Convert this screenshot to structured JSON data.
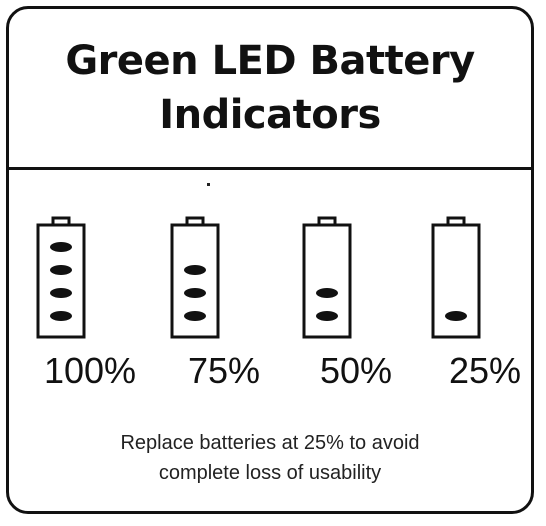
{
  "title_lines": [
    "Green LED Battery",
    "Indicators"
  ],
  "batteries": [
    {
      "label": "100%",
      "leds_lit": 4,
      "level": 1.0
    },
    {
      "label": "75%",
      "leds_lit": 3,
      "level": 0.75
    },
    {
      "label": "50%",
      "leds_lit": 2,
      "level": 0.5
    },
    {
      "label": "25%",
      "leds_lit": 1,
      "level": 0.25
    }
  ],
  "note_lines": [
    "Replace batteries at 25% to avoid",
    "complete loss of usability"
  ],
  "colors": {
    "line": "#111111",
    "led": "#111111",
    "background": "#ffffff"
  }
}
